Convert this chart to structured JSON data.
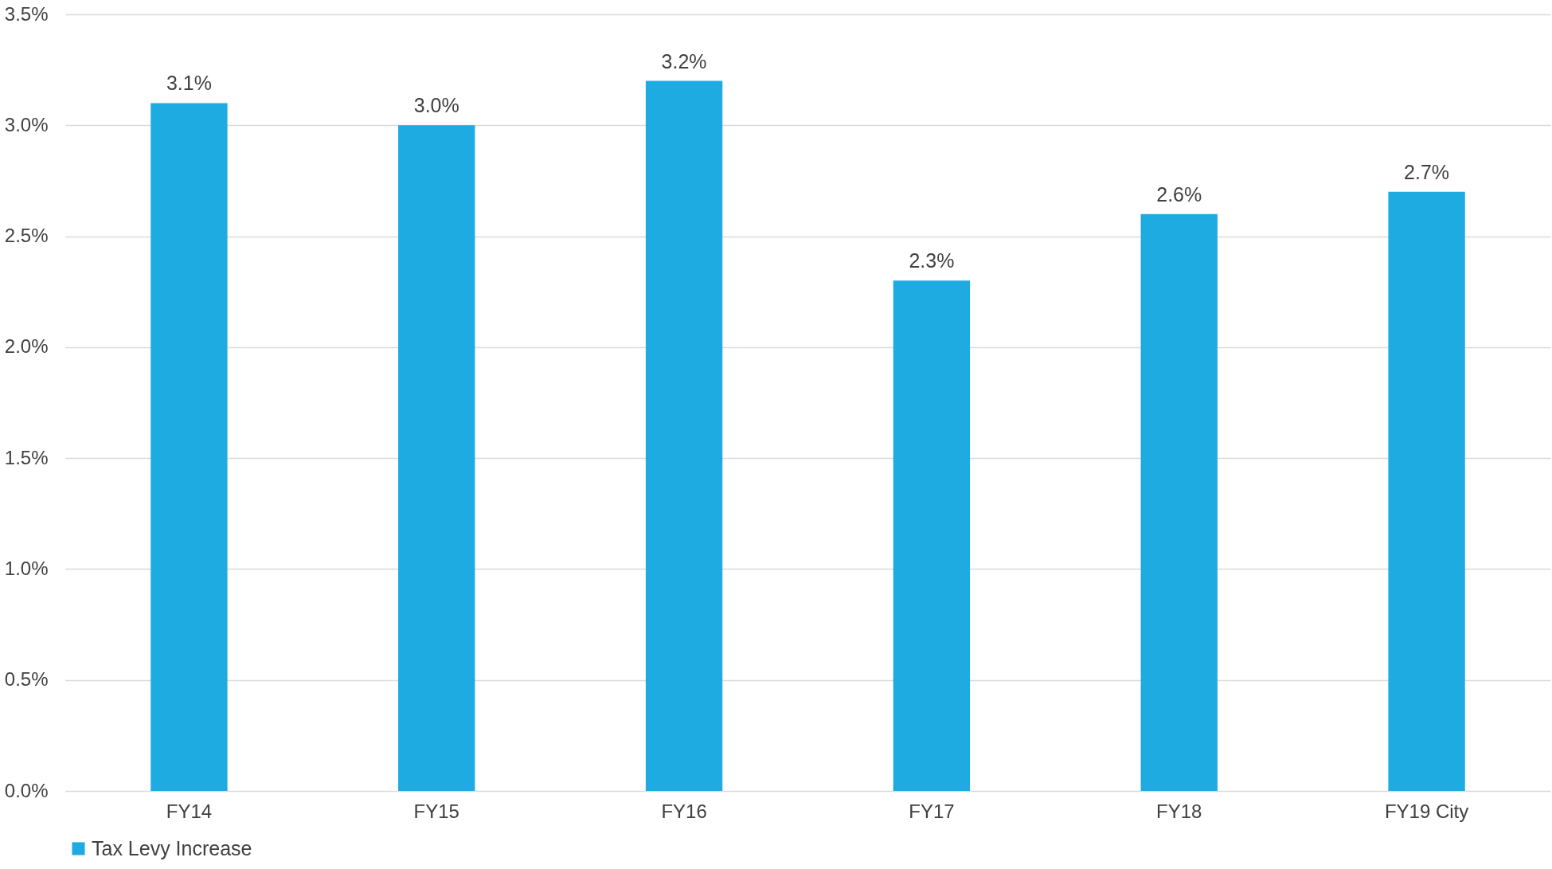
{
  "chart_data": {
    "type": "bar",
    "categories": [
      "FY14",
      "FY15",
      "FY16",
      "FY17",
      "FY18",
      "FY19 City"
    ],
    "series": [
      {
        "name": "Tax Levy Increase",
        "color": "#1eabe2",
        "values": [
          3.1,
          3.0,
          3.2,
          2.3,
          2.6,
          2.7
        ],
        "value_labels": [
          "3.1%",
          "3.0%",
          "3.2%",
          "2.3%",
          "2.6%",
          "2.7%"
        ]
      }
    ],
    "ylim": [
      0,
      3.5
    ],
    "yticks": [
      {
        "value": 0,
        "label": "0.0%"
      },
      {
        "value": 0.5,
        "label": "0.5%"
      },
      {
        "value": 1.0,
        "label": "1.0%"
      },
      {
        "value": 1.5,
        "label": "1.5%"
      },
      {
        "value": 2.0,
        "label": "2.0%"
      },
      {
        "value": 2.5,
        "label": "2.5%"
      },
      {
        "value": 3.0,
        "label": "3.0%"
      },
      {
        "value": 3.5,
        "label": "3.5%"
      }
    ],
    "grid": "y",
    "legend": "bottom"
  }
}
